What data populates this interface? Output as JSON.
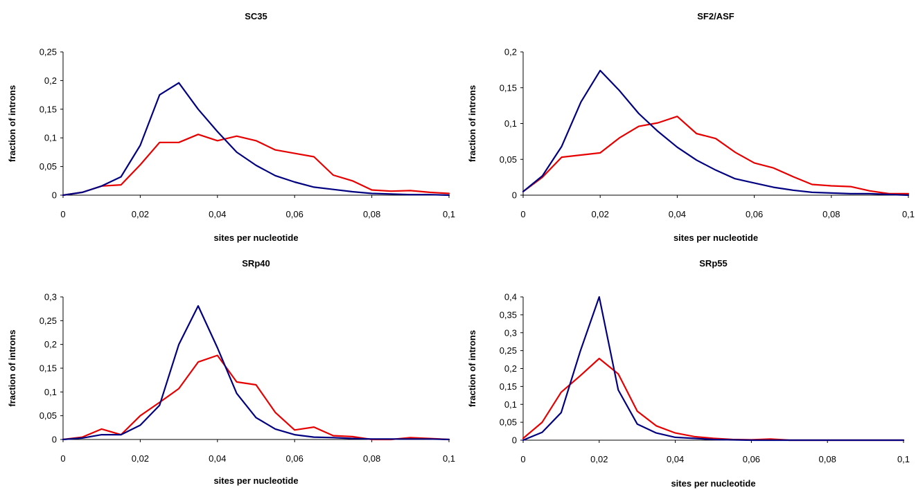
{
  "colors": {
    "series_blue": "#000080",
    "series_red": "#e60000",
    "axis": "#000000"
  },
  "chart_data": [
    {
      "type": "line",
      "title": "SC35",
      "xlabel": "sites per nucleotide",
      "ylabel": "fraction of introns",
      "xlim": [
        0,
        0.1
      ],
      "ylim": [
        0,
        0.25
      ],
      "x_ticks": [
        0,
        0.02,
        0.04,
        0.06,
        0.08,
        0.1
      ],
      "x_tick_labels": [
        "0",
        "0,02",
        "0,04",
        "0,06",
        "0,08",
        "0,1"
      ],
      "y_ticks": [
        0,
        0.05,
        0.1,
        0.15,
        0.2,
        0.25
      ],
      "y_tick_labels": [
        "0",
        "0,05",
        "0,1",
        "0,15",
        "0,2",
        "0,25"
      ],
      "x": [
        0,
        0.005,
        0.01,
        0.015,
        0.02,
        0.025,
        0.03,
        0.035,
        0.04,
        0.045,
        0.05,
        0.055,
        0.06,
        0.065,
        0.07,
        0.075,
        0.08,
        0.085,
        0.09,
        0.095,
        0.1
      ],
      "series": [
        {
          "color": "#000080",
          "values": [
            0,
            0.005,
            0.016,
            0.032,
            0.087,
            0.175,
            0.196,
            0.15,
            0.111,
            0.075,
            0.052,
            0.034,
            0.023,
            0.014,
            0.01,
            0.006,
            0.003,
            0.002,
            0.001,
            0.001,
            0
          ]
        },
        {
          "color": "#e60000",
          "values": [
            0,
            0.005,
            0.016,
            0.018,
            0.053,
            0.092,
            0.092,
            0.106,
            0.095,
            0.103,
            0.095,
            0.079,
            0.073,
            0.067,
            0.035,
            0.025,
            0.009,
            0.007,
            0.008,
            0.005,
            0.003
          ]
        }
      ]
    },
    {
      "type": "line",
      "title": "SF2/ASF",
      "xlabel": "sites per nucleotide",
      "ylabel": "fraction of introns",
      "xlim": [
        0,
        0.1
      ],
      "ylim": [
        0,
        0.2
      ],
      "x_ticks": [
        0,
        0.02,
        0.04,
        0.06,
        0.08,
        0.1
      ],
      "x_tick_labels": [
        "0",
        "0,02",
        "0,04",
        "0,06",
        "0,08",
        "0,1"
      ],
      "y_ticks": [
        0,
        0.05,
        0.1,
        0.15,
        0.2
      ],
      "y_tick_labels": [
        "0",
        "0,05",
        "0,1",
        "0,15",
        "0,2"
      ],
      "x": [
        0,
        0.005,
        0.01,
        0.015,
        0.02,
        0.025,
        0.03,
        0.035,
        0.04,
        0.045,
        0.05,
        0.055,
        0.06,
        0.065,
        0.07,
        0.075,
        0.08,
        0.085,
        0.09,
        0.095,
        0.1
      ],
      "series": [
        {
          "color": "#000080",
          "values": [
            0.005,
            0.027,
            0.068,
            0.13,
            0.174,
            0.146,
            0.114,
            0.089,
            0.067,
            0.049,
            0.035,
            0.023,
            0.017,
            0.011,
            0.007,
            0.004,
            0.003,
            0.002,
            0.002,
            0.001,
            0
          ]
        },
        {
          "color": "#e60000",
          "values": [
            0.005,
            0.025,
            0.053,
            0.056,
            0.059,
            0.08,
            0.096,
            0.101,
            0.11,
            0.086,
            0.079,
            0.06,
            0.045,
            0.038,
            0.026,
            0.015,
            0.013,
            0.012,
            0.006,
            0.002,
            0.002
          ]
        }
      ]
    },
    {
      "type": "line",
      "title": "SRp40",
      "xlabel": "sites per nucleotide",
      "ylabel": "fraction of introns",
      "xlim": [
        0,
        0.1
      ],
      "ylim": [
        0,
        0.3
      ],
      "x_ticks": [
        0,
        0.02,
        0.04,
        0.06,
        0.08,
        0.1
      ],
      "x_tick_labels": [
        "0",
        "0,02",
        "0,04",
        "0,06",
        "0,08",
        "0,1"
      ],
      "y_ticks": [
        0,
        0.05,
        0.1,
        0.15,
        0.2,
        0.25,
        0.3
      ],
      "y_tick_labels": [
        "0",
        "0,05",
        "0,1",
        "0,15",
        "0,2",
        "0,25",
        "0,3"
      ],
      "x": [
        0,
        0.005,
        0.01,
        0.015,
        0.02,
        0.025,
        0.03,
        0.035,
        0.04,
        0.045,
        0.05,
        0.055,
        0.06,
        0.065,
        0.07,
        0.075,
        0.08,
        0.085,
        0.09,
        0.095,
        0.1
      ],
      "series": [
        {
          "color": "#000080",
          "values": [
            0,
            0.003,
            0.01,
            0.01,
            0.03,
            0.072,
            0.2,
            0.281,
            0.193,
            0.097,
            0.046,
            0.022,
            0.01,
            0.005,
            0.004,
            0.002,
            0.001,
            0.001,
            0.001,
            0.001,
            0
          ]
        },
        {
          "color": "#e60000",
          "values": [
            0,
            0.005,
            0.022,
            0.01,
            0.05,
            0.078,
            0.107,
            0.163,
            0.177,
            0.121,
            0.115,
            0.057,
            0.02,
            0.026,
            0.008,
            0.006,
            0,
            0,
            0.004,
            0.002,
            0
          ]
        }
      ]
    },
    {
      "type": "line",
      "title": "SRp55",
      "xlabel": "sites per nucleotide",
      "ylabel": "fraction of introns",
      "xlim": [
        0,
        0.1
      ],
      "ylim": [
        0,
        0.4
      ],
      "x_ticks": [
        0,
        0.02,
        0.04,
        0.06,
        0.08,
        0.1
      ],
      "x_tick_labels": [
        "0",
        "0,02",
        "0,04",
        "0,06",
        "0,08",
        "0,1"
      ],
      "y_ticks": [
        0,
        0.05,
        0.1,
        0.15,
        0.2,
        0.25,
        0.3,
        0.35,
        0.4
      ],
      "y_tick_labels": [
        "0",
        "0,05",
        "0,1",
        "0,15",
        "0,2",
        "0,25",
        "0,3",
        "0,35",
        "0,4"
      ],
      "x": [
        0,
        0.005,
        0.01,
        0.015,
        0.02,
        0.025,
        0.03,
        0.035,
        0.04,
        0.045,
        0.05,
        0.055,
        0.06,
        0.065,
        0.07,
        0.075,
        0.08,
        0.085,
        0.09,
        0.095,
        0.1
      ],
      "series": [
        {
          "color": "#000080",
          "values": [
            0,
            0.022,
            0.077,
            0.248,
            0.4,
            0.14,
            0.045,
            0.02,
            0.008,
            0.005,
            0.002,
            0.001,
            0,
            0,
            0,
            0,
            0,
            0,
            0,
            0,
            0
          ]
        },
        {
          "color": "#e60000",
          "values": [
            0.005,
            0.05,
            0.134,
            0.18,
            0.228,
            0.185,
            0.081,
            0.04,
            0.02,
            0.01,
            0.005,
            0.002,
            0.001,
            0.003,
            0,
            0,
            0,
            0,
            0,
            0,
            0
          ]
        }
      ]
    }
  ]
}
